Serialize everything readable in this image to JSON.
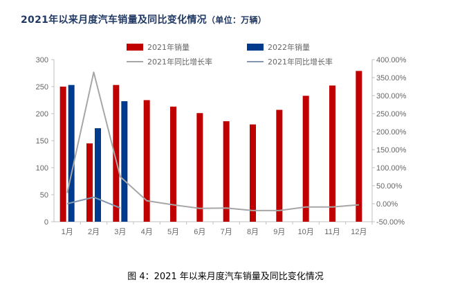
{
  "title": "2021年以来月度汽车销量及同比变化情况",
  "title_unit": "（单位：万辆）",
  "caption": "图 4：2021 年以来月度汽车销量及同比变化情况",
  "chart_data": {
    "type": "bar",
    "categories": [
      "1月",
      "2月",
      "3月",
      "4月",
      "5月",
      "6月",
      "7月",
      "8月",
      "9月",
      "10月",
      "11月",
      "12月"
    ],
    "series": [
      {
        "name": "2021年销量",
        "kind": "bar",
        "axis": "left",
        "color": "#c00000",
        "values": [
          250,
          145,
          253,
          225,
          213,
          201,
          186,
          180,
          207,
          233,
          252,
          279
        ]
      },
      {
        "name": "2022年销量",
        "kind": "bar",
        "axis": "left",
        "color": "#003a8c",
        "values": [
          253,
          173,
          223,
          null,
          null,
          null,
          null,
          null,
          null,
          null,
          null,
          null
        ]
      },
      {
        "name": "2021年同比增长率",
        "kind": "line",
        "axis": "right",
        "color": "#a6a6a6",
        "values": [
          30,
          365,
          75,
          8,
          -3,
          -13,
          -12,
          -19,
          -19,
          -9,
          -9,
          -3
        ]
      },
      {
        "name": "2021年同比增长率",
        "kind": "line",
        "axis": "right",
        "color": "#8497b0",
        "values": [
          0,
          18,
          -12,
          null,
          null,
          null,
          null,
          null,
          null,
          null,
          null,
          null
        ]
      }
    ],
    "y_left": {
      "min": 0,
      "max": 300,
      "step": 50,
      "ticks": [
        "0",
        "50",
        "100",
        "150",
        "200",
        "250",
        "300"
      ]
    },
    "y_right": {
      "min": -50,
      "max": 400,
      "step": 50,
      "ticks": [
        "-50.00%",
        "0.00%",
        "50.00%",
        "100.00%",
        "150.00%",
        "200.00%",
        "250.00%",
        "300.00%",
        "350.00%",
        "400.00%"
      ]
    },
    "legend_position": "top",
    "grid": false
  }
}
